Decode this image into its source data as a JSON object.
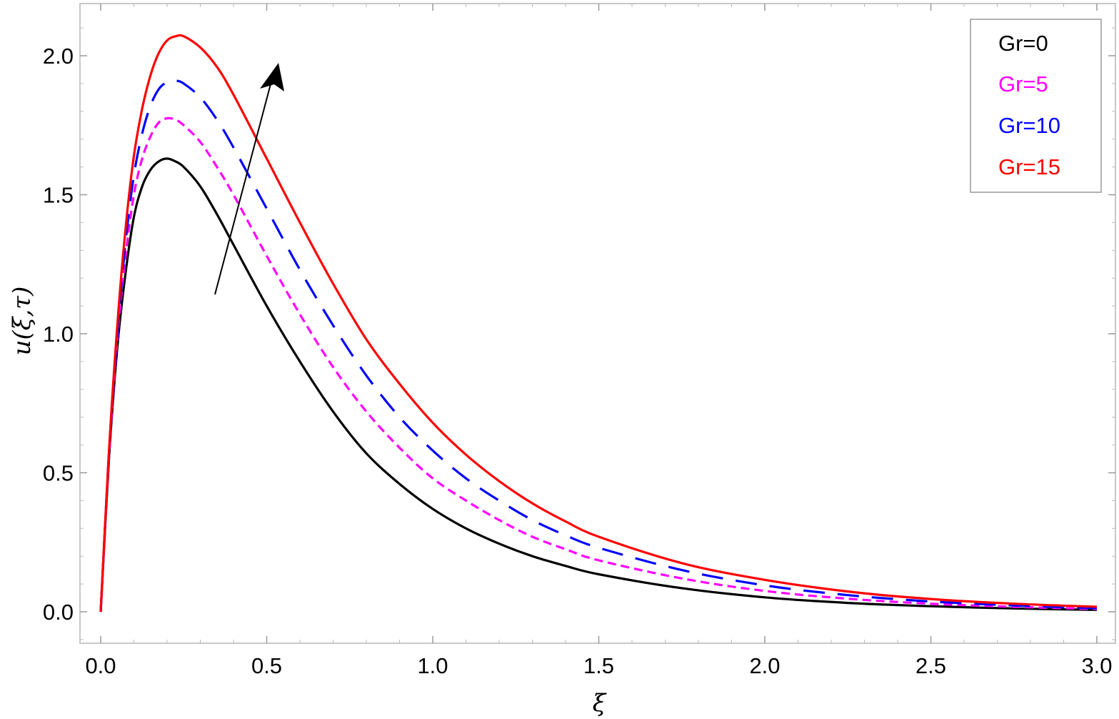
{
  "chart_data": {
    "type": "line",
    "title": "",
    "xlabel": "ξ",
    "ylabel": "u(ξ,τ)",
    "xlim": [
      -0.06,
      3.0
    ],
    "ylim": [
      -0.12,
      2.18
    ],
    "x_ticks": [
      0.0,
      0.5,
      1.0,
      1.5,
      2.0,
      2.5,
      3.0
    ],
    "x_tick_labels": [
      "0.0",
      "0.5",
      "1.0",
      "1.5",
      "2.0",
      "2.5",
      "3.0"
    ],
    "y_ticks": [
      0.0,
      0.5,
      1.0,
      1.5,
      2.0
    ],
    "y_tick_labels": [
      "0.0",
      "0.5",
      "1.0",
      "1.5",
      "2.0"
    ],
    "grid": false,
    "legend_position": "top-right",
    "annotation": "arrow indicating increasing Gr",
    "series": [
      {
        "name": "Gr=0",
        "color": "#000000",
        "style": "solid",
        "points": [
          [
            0,
            0
          ],
          [
            0.025,
            0.55
          ],
          [
            0.05,
            0.95
          ],
          [
            0.075,
            1.22
          ],
          [
            0.1,
            1.42
          ],
          [
            0.125,
            1.53
          ],
          [
            0.15,
            1.59
          ],
          [
            0.175,
            1.62
          ],
          [
            0.2,
            1.63
          ],
          [
            0.225,
            1.62
          ],
          [
            0.25,
            1.6
          ],
          [
            0.3,
            1.53
          ],
          [
            0.35,
            1.43
          ],
          [
            0.4,
            1.32
          ],
          [
            0.5,
            1.1
          ],
          [
            0.6,
            0.9
          ],
          [
            0.7,
            0.72
          ],
          [
            0.8,
            0.57
          ],
          [
            0.9,
            0.46
          ],
          [
            1.0,
            0.37
          ],
          [
            1.1,
            0.3
          ],
          [
            1.2,
            0.245
          ],
          [
            1.3,
            0.2
          ],
          [
            1.4,
            0.165
          ],
          [
            1.5,
            0.135
          ],
          [
            1.75,
            0.085
          ],
          [
            2.0,
            0.052
          ],
          [
            2.25,
            0.032
          ],
          [
            2.5,
            0.02
          ],
          [
            2.75,
            0.012
          ],
          [
            3.0,
            0.007
          ]
        ]
      },
      {
        "name": "Gr=5",
        "color": "#ff00ff",
        "style": "short-dash",
        "points": [
          [
            0,
            0
          ],
          [
            0.025,
            0.56
          ],
          [
            0.05,
            0.98
          ],
          [
            0.075,
            1.28
          ],
          [
            0.1,
            1.5
          ],
          [
            0.125,
            1.63
          ],
          [
            0.15,
            1.71
          ],
          [
            0.175,
            1.76
          ],
          [
            0.2,
            1.775
          ],
          [
            0.225,
            1.77
          ],
          [
            0.25,
            1.75
          ],
          [
            0.3,
            1.69
          ],
          [
            0.35,
            1.6
          ],
          [
            0.4,
            1.5
          ],
          [
            0.5,
            1.28
          ],
          [
            0.6,
            1.07
          ],
          [
            0.7,
            0.88
          ],
          [
            0.8,
            0.72
          ],
          [
            0.9,
            0.59
          ],
          [
            1.0,
            0.48
          ],
          [
            1.1,
            0.4
          ],
          [
            1.2,
            0.33
          ],
          [
            1.3,
            0.27
          ],
          [
            1.4,
            0.225
          ],
          [
            1.5,
            0.185
          ],
          [
            1.75,
            0.12
          ],
          [
            2.0,
            0.075
          ],
          [
            2.25,
            0.047
          ],
          [
            2.5,
            0.029
          ],
          [
            2.75,
            0.018
          ],
          [
            3.0,
            0.01
          ]
        ]
      },
      {
        "name": "Gr=10",
        "color": "#0000ff",
        "style": "long-dash",
        "points": [
          [
            0,
            0
          ],
          [
            0.025,
            0.57
          ],
          [
            0.05,
            1.0
          ],
          [
            0.075,
            1.33
          ],
          [
            0.1,
            1.57
          ],
          [
            0.125,
            1.72
          ],
          [
            0.15,
            1.82
          ],
          [
            0.175,
            1.88
          ],
          [
            0.2,
            1.905
          ],
          [
            0.225,
            1.91
          ],
          [
            0.25,
            1.9
          ],
          [
            0.3,
            1.85
          ],
          [
            0.35,
            1.77
          ],
          [
            0.4,
            1.67
          ],
          [
            0.5,
            1.45
          ],
          [
            0.6,
            1.23
          ],
          [
            0.7,
            1.03
          ],
          [
            0.8,
            0.85
          ],
          [
            0.9,
            0.7
          ],
          [
            1.0,
            0.58
          ],
          [
            1.1,
            0.48
          ],
          [
            1.2,
            0.4
          ],
          [
            1.3,
            0.33
          ],
          [
            1.4,
            0.275
          ],
          [
            1.5,
            0.23
          ],
          [
            1.75,
            0.15
          ],
          [
            2.0,
            0.095
          ],
          [
            2.25,
            0.06
          ],
          [
            2.5,
            0.037
          ],
          [
            2.75,
            0.023
          ],
          [
            3.0,
            0.013
          ]
        ]
      },
      {
        "name": "Gr=15",
        "color": "#ff0000",
        "style": "solid",
        "points": [
          [
            0,
            0
          ],
          [
            0.025,
            0.58
          ],
          [
            0.05,
            1.03
          ],
          [
            0.075,
            1.38
          ],
          [
            0.1,
            1.64
          ],
          [
            0.125,
            1.81
          ],
          [
            0.15,
            1.93
          ],
          [
            0.175,
            2.01
          ],
          [
            0.2,
            2.055
          ],
          [
            0.225,
            2.07
          ],
          [
            0.25,
            2.07
          ],
          [
            0.3,
            2.03
          ],
          [
            0.35,
            1.96
          ],
          [
            0.4,
            1.86
          ],
          [
            0.5,
            1.63
          ],
          [
            0.6,
            1.4
          ],
          [
            0.7,
            1.18
          ],
          [
            0.8,
            0.98
          ],
          [
            0.9,
            0.82
          ],
          [
            1.0,
            0.68
          ],
          [
            1.1,
            0.565
          ],
          [
            1.2,
            0.47
          ],
          [
            1.3,
            0.39
          ],
          [
            1.4,
            0.325
          ],
          [
            1.5,
            0.27
          ],
          [
            1.75,
            0.175
          ],
          [
            2.0,
            0.115
          ],
          [
            2.25,
            0.073
          ],
          [
            2.5,
            0.046
          ],
          [
            2.75,
            0.029
          ],
          [
            3.0,
            0.018
          ]
        ]
      }
    ]
  }
}
